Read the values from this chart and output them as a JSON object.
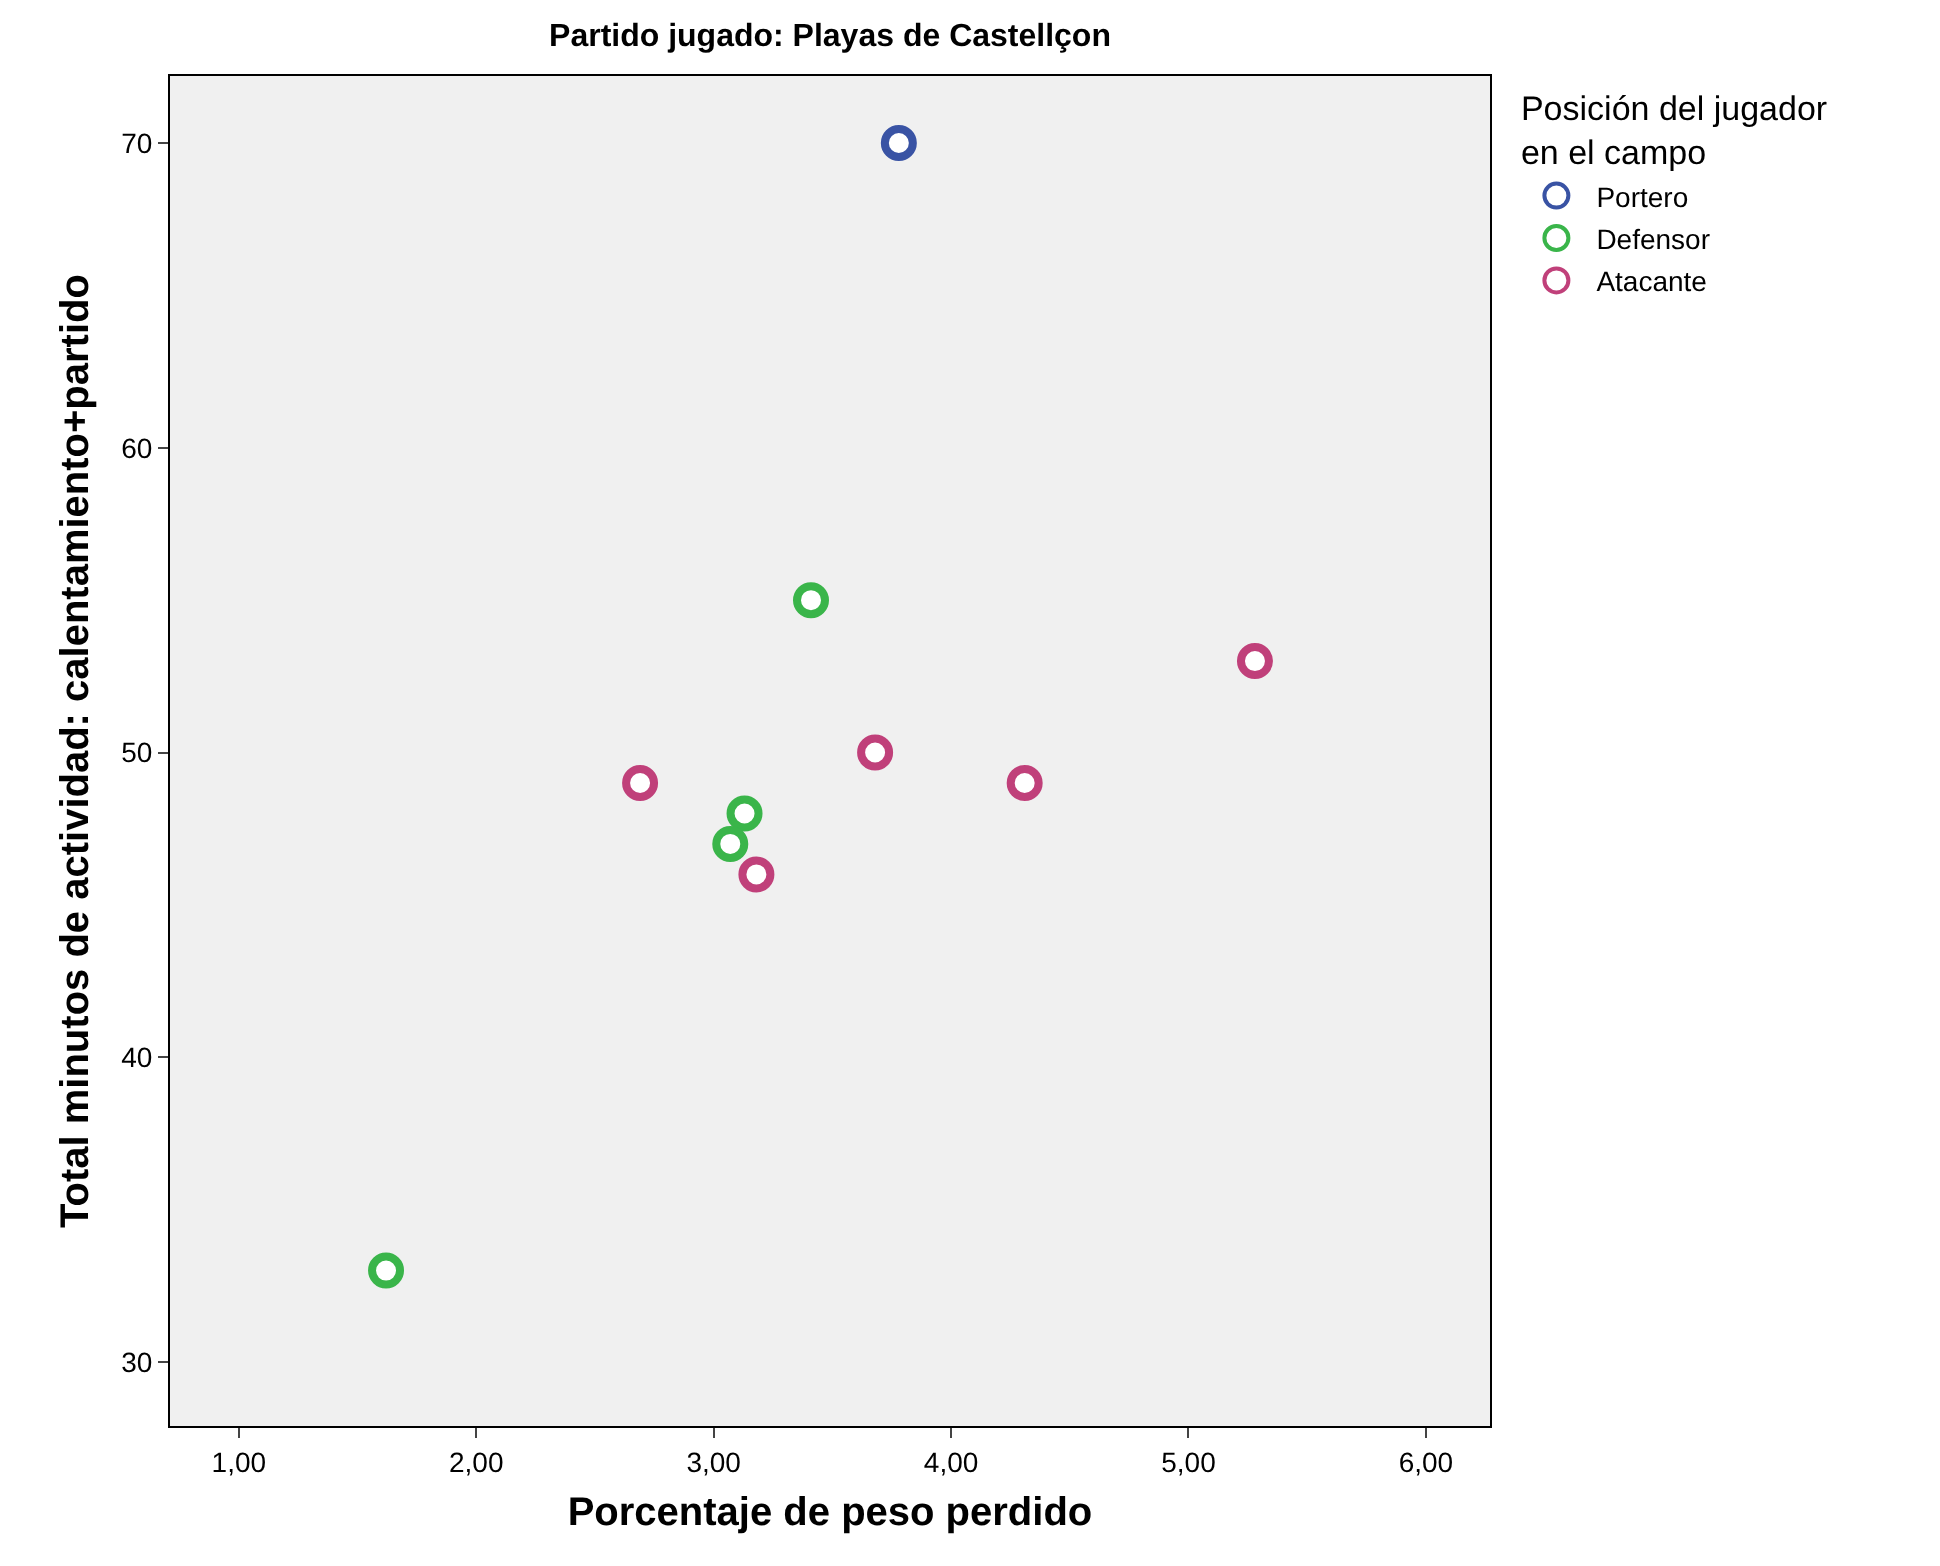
{
  "chart_data": {
    "type": "scatter",
    "title": "Partido jugado: Playas de Castellçon",
    "xlabel": "Porcentaje de peso perdido",
    "ylabel": "Total minutos de actividad: calentamiento+partido",
    "legend_title": "Posición del jugador en el campo",
    "legend": "top right",
    "grid": false,
    "marker": "circle",
    "xlim": [
      0.71,
      6.27
    ],
    "ylim": [
      27.9,
      72.2
    ],
    "xticks": [
      {
        "value": 1,
        "label": "1,00"
      },
      {
        "value": 2,
        "label": "2,00"
      },
      {
        "value": 3,
        "label": "3,00"
      },
      {
        "value": 4,
        "label": "4,00"
      },
      {
        "value": 5,
        "label": "5,00"
      },
      {
        "value": 6,
        "label": "6,00"
      }
    ],
    "yticks": [
      30,
      40,
      50,
      60,
      70
    ],
    "series": [
      {
        "name": "Portero",
        "color": "#3953a4",
        "x": [
          3.78
        ],
        "values": [
          70
        ]
      },
      {
        "name": "Defensor",
        "color": "#3ab54a",
        "x": [
          3.41,
          3.13,
          3.07,
          1.62
        ],
        "values": [
          55,
          48,
          47,
          33
        ]
      },
      {
        "name": "Atacante",
        "color": "#c0407a",
        "x": [
          2.69,
          3.68,
          3.18,
          4.31,
          5.28
        ],
        "values": [
          49,
          50,
          46,
          49,
          53
        ]
      }
    ]
  }
}
